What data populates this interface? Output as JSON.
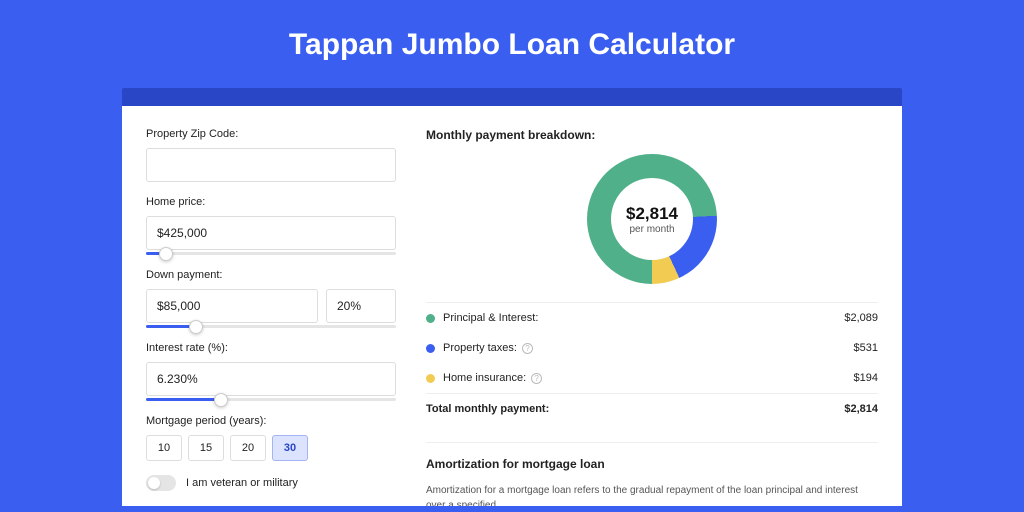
{
  "page": {
    "title": "Tappan Jumbo Loan Calculator",
    "bg_color": "#3a5ff0",
    "banner_color": "#2946c6",
    "card_bg": "#ffffff"
  },
  "form": {
    "zip": {
      "label": "Property Zip Code:",
      "value": ""
    },
    "home_price": {
      "label": "Home price:",
      "value": "$425,000",
      "slider_pct": 8
    },
    "down_payment": {
      "label": "Down payment:",
      "amount": "$85,000",
      "percent": "20%",
      "slider_pct": 20
    },
    "interest": {
      "label": "Interest rate (%):",
      "value": "6.230%",
      "slider_pct": 30
    },
    "period": {
      "label": "Mortgage period (years):",
      "options": [
        "10",
        "15",
        "20",
        "30"
      ],
      "selected": 3
    },
    "veteran": {
      "label": "I am veteran or military",
      "checked": false
    }
  },
  "breakdown": {
    "title": "Monthly payment breakdown:",
    "donut": {
      "total": "$2,814",
      "sub": "per month",
      "slices": [
        {
          "pct": 74.2,
          "color": "#4fb08a"
        },
        {
          "pct": 18.9,
          "color": "#3a5ff0"
        },
        {
          "pct": 6.9,
          "color": "#f2cc52"
        }
      ]
    },
    "legend": [
      {
        "color": "#4fb08a",
        "label": "Principal & Interest:",
        "info": false,
        "value": "$2,089"
      },
      {
        "color": "#3a5ff0",
        "label": "Property taxes:",
        "info": true,
        "value": "$531"
      },
      {
        "color": "#f2cc52",
        "label": "Home insurance:",
        "info": true,
        "value": "$194"
      }
    ],
    "total": {
      "label": "Total monthly payment:",
      "value": "$2,814"
    }
  },
  "amort": {
    "title": "Amortization for mortgage loan",
    "text": "Amortization for a mortgage loan refers to the gradual repayment of the loan principal and interest over a specified"
  }
}
